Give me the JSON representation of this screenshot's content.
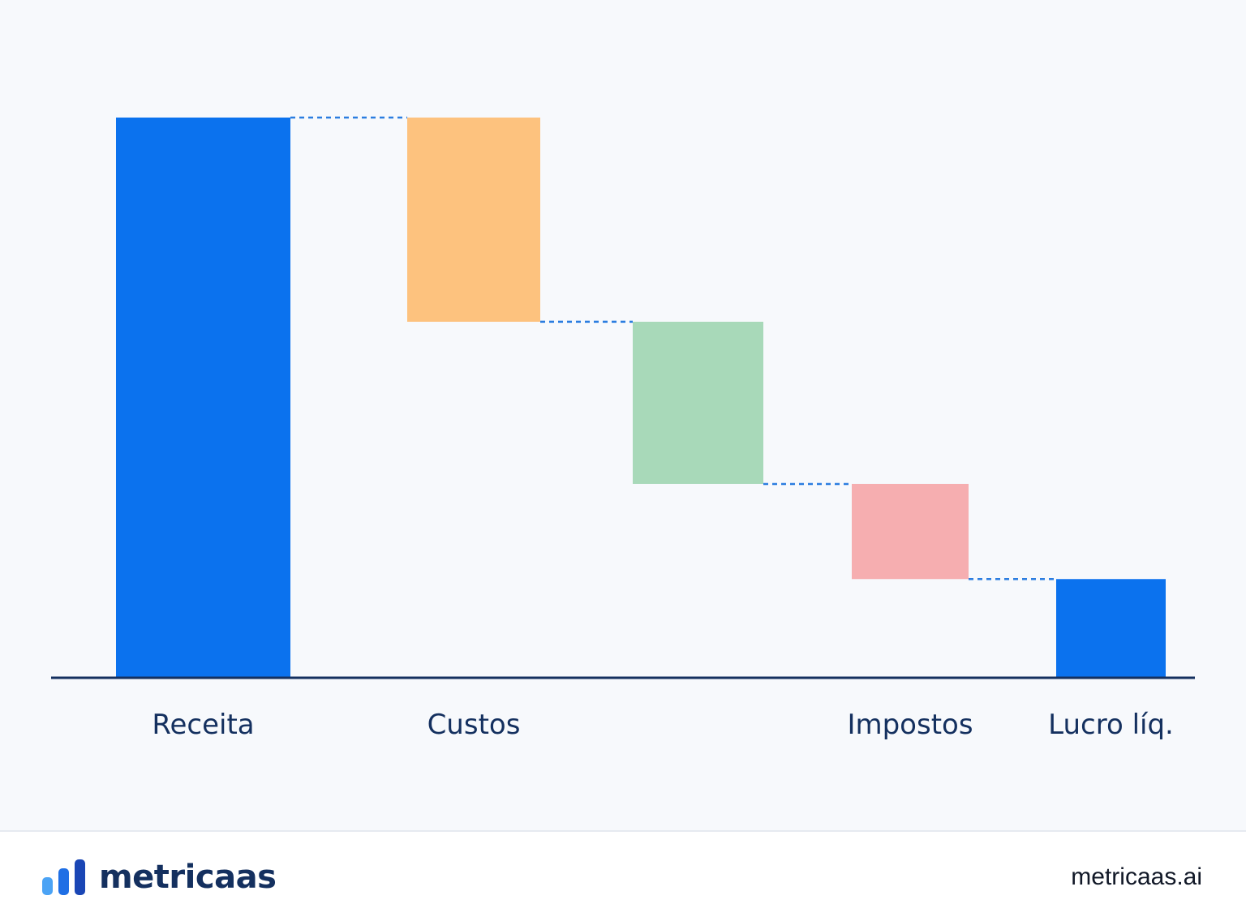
{
  "chart_data": {
    "type": "waterfall",
    "categories": [
      "Receita",
      "Custos",
      "",
      "Impostos",
      "Lucro líq."
    ],
    "category_labels_shown": [
      "Receita",
      "Custos",
      "Impostos",
      "Lucro líq."
    ],
    "steps": [
      {
        "category": "Receita",
        "kind": "total",
        "value": 100,
        "color": "#0b72ee"
      },
      {
        "category": "Custos",
        "kind": "decrease",
        "value": -36.5,
        "color": "#fdc27e"
      },
      {
        "category": "",
        "kind": "decrease",
        "value": -29,
        "color": "#a8d9b9"
      },
      {
        "category": "Impostos",
        "kind": "decrease",
        "value": -17,
        "color": "#f6aeb0"
      },
      {
        "category": "Lucro líq.",
        "kind": "total",
        "value": 17.5,
        "color": "#0b72ee"
      }
    ],
    "ylim": [
      0,
      100
    ],
    "grid": false,
    "legend": "none",
    "connector_color": "#2b7de0",
    "axis_color": "#14305f"
  },
  "footer": {
    "brand_name": "metricaas",
    "brand_url": "metricaas.ai",
    "logo_colors": [
      "#4ba3f5",
      "#1f6fe5",
      "#1a46b5"
    ]
  }
}
